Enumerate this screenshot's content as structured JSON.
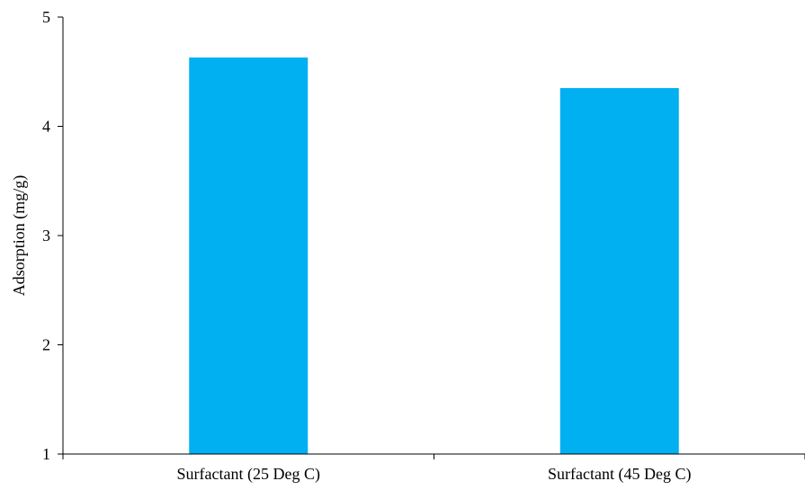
{
  "chart_data": {
    "type": "bar",
    "categories": [
      "Surfactant (25 Deg C)",
      "Surfactant (45 Deg C)"
    ],
    "values": [
      4.63,
      4.35
    ],
    "title": "",
    "xlabel": "",
    "ylabel": "Adsorption (mg/g)",
    "ylim": [
      1,
      5
    ],
    "yticks": [
      1,
      2,
      3,
      4,
      5
    ],
    "grid": false,
    "bar_color": "#00B0F0"
  }
}
